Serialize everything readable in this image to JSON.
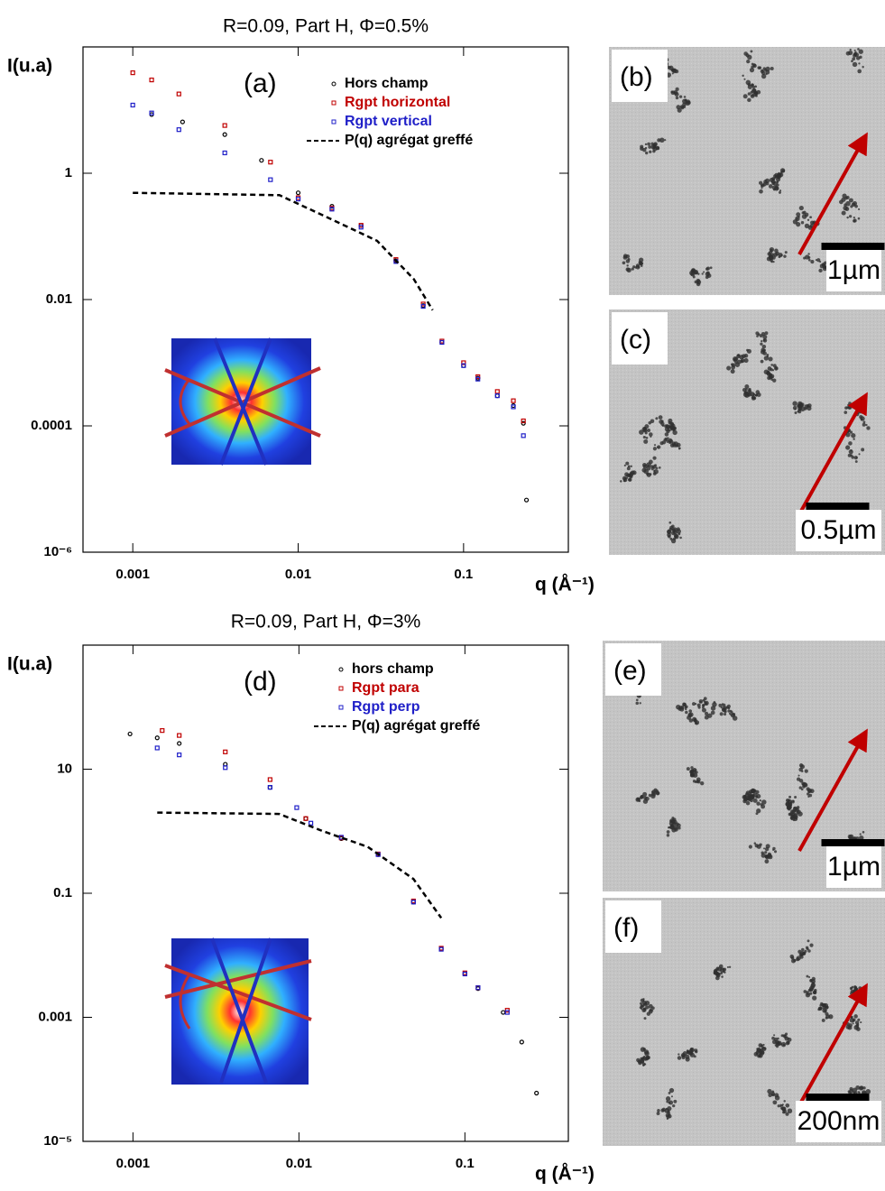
{
  "chart_data": [
    {
      "type": "scatter",
      "title": "R=0.09, Part H, Φ=0.5%",
      "panel_label": "(a)",
      "y_label": "I(u.a)",
      "x_label": "q (Å⁻¹)",
      "log_x": true,
      "log_y": true,
      "xlim": [
        0.0005,
        0.43
      ],
      "ylim": [
        1e-06,
        100
      ],
      "xticks": [
        0.001,
        0.01,
        0.1
      ],
      "yticks": [
        {
          "value": 1e-06,
          "label": "10⁻⁶"
        },
        0.0001,
        0.01,
        1
      ],
      "series": [
        {
          "name": "Hors champ",
          "color": "#000000",
          "marker": "circle",
          "x": [
            0.0013,
            0.002,
            0.0036,
            0.006,
            0.01,
            0.016,
            0.024,
            0.039,
            0.057,
            0.074,
            0.1,
            0.122,
            0.16,
            0.2,
            0.23,
            0.24
          ],
          "values": [
            8.5,
            6.5,
            4.1,
            1.6,
            0.49,
            0.3,
            0.15,
            0.041,
            0.008,
            0.0021,
            0.0009,
            0.00057,
            0.0003,
            0.00021,
            0.00011,
            6.7e-06
          ]
        },
        {
          "name": "Rgpt horizontal",
          "color": "#c00000",
          "marker": "square",
          "x": [
            0.001,
            0.0013,
            0.0019,
            0.0036,
            0.0068,
            0.01,
            0.016,
            0.024,
            0.039,
            0.057,
            0.074,
            0.1,
            0.122,
            0.16,
            0.2,
            0.23
          ],
          "values": [
            39,
            30,
            18,
            5.7,
            1.5,
            0.41,
            0.28,
            0.15,
            0.043,
            0.0085,
            0.0022,
            0.001,
            0.0006,
            0.00035,
            0.00025,
            0.00012
          ]
        },
        {
          "name": "Rgpt vertical",
          "color": "#1f1fc8",
          "marker": "square",
          "x": [
            0.001,
            0.0013,
            0.0019,
            0.0036,
            0.0068,
            0.01,
            0.016,
            0.024,
            0.039,
            0.057,
            0.074,
            0.1,
            0.122,
            0.16,
            0.2,
            0.23
          ],
          "values": [
            12,
            9,
            4.9,
            2.1,
            0.79,
            0.39,
            0.27,
            0.14,
            0.04,
            0.0078,
            0.0021,
            0.0009,
            0.00055,
            0.0003,
            0.0002,
            7e-05
          ]
        },
        {
          "name": "P(q) agrégat greffé",
          "color": "#000000",
          "line_style": "dashed",
          "x": [
            0.001,
            0.0077,
            0.0144,
            0.03,
            0.05,
            0.065
          ],
          "values": [
            0.49,
            0.45,
            0.21,
            0.085,
            0.021,
            0.0068
          ]
        }
      ]
    },
    {
      "type": "scatter",
      "title": "R=0.09, Part H, Φ=3%",
      "panel_label": "(d)",
      "y_label": "I(u.a)",
      "x_label": "q (Å⁻¹)",
      "log_x": true,
      "log_y": true,
      "xlim": [
        0.0005,
        0.42
      ],
      "ylim": [
        1e-05,
        1000
      ],
      "xticks": [
        0.001,
        0.01,
        0.1
      ],
      "yticks": [
        {
          "value": 1e-05,
          "label": "10⁻⁵"
        },
        0.001,
        0.1,
        10
      ],
      "series": [
        {
          "name": "hors champ",
          "color": "#000000",
          "marker": "circle",
          "x": [
            0.00096,
            0.0014,
            0.0019,
            0.0036,
            0.0067,
            0.011,
            0.018,
            0.03,
            0.049,
            0.072,
            0.1,
            0.12,
            0.17,
            0.22,
            0.27
          ],
          "values": [
            37,
            32,
            26,
            12,
            5.1,
            1.6,
            0.76,
            0.42,
            0.072,
            0.0126,
            0.005,
            0.0029,
            0.0012,
            0.0004,
            6e-05
          ]
        },
        {
          "name": "Rgpt para",
          "color": "#c00000",
          "marker": "square",
          "x": [
            0.0015,
            0.0019,
            0.0036,
            0.0067,
            0.011,
            0.018,
            0.03,
            0.049,
            0.072,
            0.1,
            0.12,
            0.18
          ],
          "values": [
            42,
            35,
            19,
            6.8,
            1.6,
            0.78,
            0.43,
            0.075,
            0.013,
            0.0052,
            0.003,
            0.0013
          ]
        },
        {
          "name": "Rgpt perp",
          "color": "#1f1fc8",
          "marker": "square",
          "x": [
            0.0014,
            0.0019,
            0.0036,
            0.0067,
            0.0097,
            0.0118,
            0.018,
            0.03,
            0.049,
            0.072,
            0.1,
            0.12,
            0.18
          ],
          "values": [
            22,
            17,
            10.6,
            5.1,
            2.4,
            1.35,
            0.8,
            0.42,
            0.072,
            0.0125,
            0.005,
            0.003,
            0.0012
          ]
        },
        {
          "name": "P(q) agrégat greffé",
          "color": "#000000",
          "line_style": "dashed",
          "x": [
            0.0014,
            0.0076,
            0.014,
            0.026,
            0.049,
            0.072
          ],
          "values": [
            2,
            1.9,
            1.0,
            0.56,
            0.17,
            0.04
          ]
        }
      ]
    }
  ],
  "images": [
    {
      "label": "(b)",
      "scale": "1µm"
    },
    {
      "label": "(c)",
      "scale": "0.5µm"
    },
    {
      "label": "(e)",
      "scale": "1µm"
    },
    {
      "label": "(f)",
      "scale": "200nm"
    }
  ]
}
